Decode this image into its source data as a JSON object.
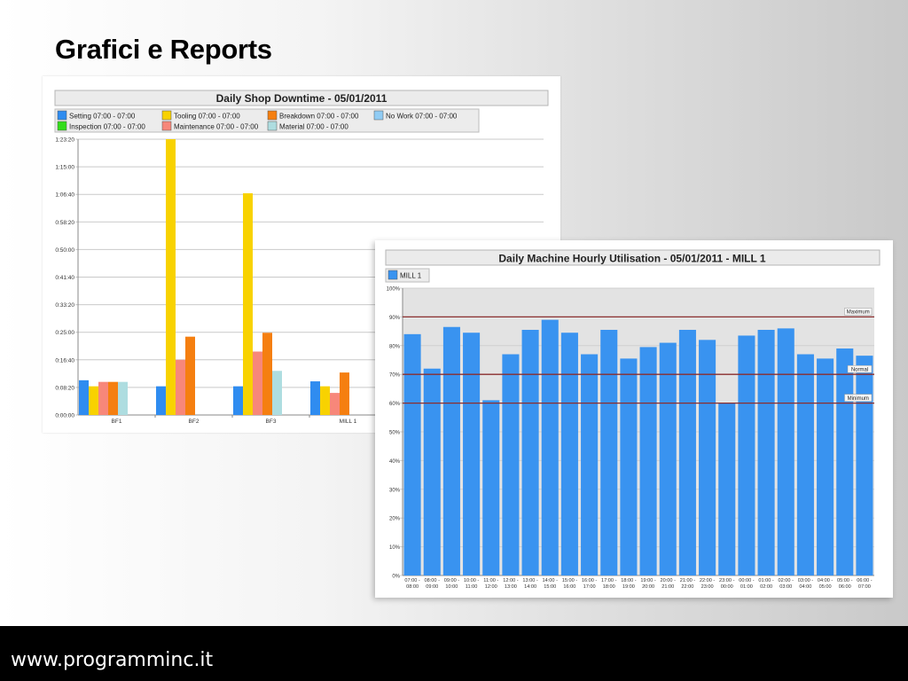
{
  "slide": {
    "title": "Grafici e Reports",
    "footer": "www.programminc.it"
  },
  "colors": {
    "setting": "#2f8cf0",
    "tooling": "#f8d200",
    "breakdown": "#f57f10",
    "nowork": "#90ccf4",
    "inspection": "#33dd1a",
    "maintenance": "#f7877a",
    "material": "#aedde0",
    "mill": "#3993f0",
    "refline": "#8b2e2e"
  },
  "chart_data": [
    {
      "type": "bar",
      "title": "Daily Shop Downtime - 05/01/2011",
      "categories": [
        "BF1",
        "BF2",
        "BF3",
        "MILL 1"
      ],
      "y_unit": "seconds",
      "ylim": [
        0,
        5000
      ],
      "y_ticks": [
        "0:00:00",
        "0:08:20",
        "0:16:40",
        "0:25:00",
        "0:33:20",
        "0:41:40",
        "0:50:00",
        "0:58:20",
        "1:06:40",
        "1:15:00",
        "1:23:20"
      ],
      "grid": true,
      "legend_position": "top",
      "series": [
        {
          "name": "Setting 07:00 - 07:00",
          "color_key": "setting",
          "values": [
            630,
            520,
            520,
            610
          ]
        },
        {
          "name": "Tooling 07:00 - 07:00",
          "color_key": "tooling",
          "values": [
            520,
            5000,
            4020,
            520
          ]
        },
        {
          "name": "Maintenance 07:00 - 07:00",
          "color_key": "maintenance",
          "values": [
            600,
            1000,
            1150,
            400
          ]
        },
        {
          "name": "Breakdown 07:00 - 07:00",
          "color_key": "breakdown",
          "values": [
            600,
            1420,
            1490,
            770
          ]
        },
        {
          "name": "Material 07:00 - 07:00",
          "color_key": "material",
          "values": [
            600,
            0,
            800,
            0
          ]
        },
        {
          "name": "No Work 07:00 - 07:00",
          "color_key": "nowork",
          "values": [
            0,
            0,
            0,
            0
          ]
        },
        {
          "name": "Inspection 07:00 - 07:00",
          "color_key": "inspection",
          "values": [
            0,
            0,
            0,
            0
          ]
        }
      ],
      "legend_order": [
        [
          "Setting 07:00 - 07:00",
          "Tooling 07:00 - 07:00",
          "Breakdown 07:00 - 07:00",
          "No Work 07:00 - 07:00"
        ],
        [
          "Inspection 07:00 - 07:00",
          "Maintenance 07:00 - 07:00",
          "Material 07:00 - 07:00"
        ]
      ]
    },
    {
      "type": "bar",
      "title": "Daily Machine Hourly Utilisation - 05/01/2011 - MILL 1",
      "legend": [
        "MILL 1"
      ],
      "y_unit": "percent",
      "ylim": [
        0,
        100
      ],
      "y_ticks": [
        "0%",
        "10%",
        "20%",
        "30%",
        "40%",
        "50%",
        "60%",
        "70%",
        "80%",
        "90%",
        "100%"
      ],
      "grid": true,
      "legend_position": "top-left",
      "categories": [
        [
          "07:00 -",
          "08:00"
        ],
        [
          "08:00 -",
          "09:00"
        ],
        [
          "09:00 -",
          "10:00"
        ],
        [
          "10:00 -",
          "11:00"
        ],
        [
          "11:00 -",
          "12:00"
        ],
        [
          "12:00 -",
          "13:00"
        ],
        [
          "13:00 -",
          "14:00"
        ],
        [
          "14:00 -",
          "15:00"
        ],
        [
          "15:00 -",
          "16:00"
        ],
        [
          "16:00 -",
          "17:00"
        ],
        [
          "17:00 -",
          "18:00"
        ],
        [
          "18:00 -",
          "19:00"
        ],
        [
          "19:00 -",
          "20:00"
        ],
        [
          "20:00 -",
          "21:00"
        ],
        [
          "21:00 -",
          "22:00"
        ],
        [
          "22:00 -",
          "23:00"
        ],
        [
          "23:00 -",
          "00:00"
        ],
        [
          "00:00 -",
          "01:00"
        ],
        [
          "01:00 -",
          "02:00"
        ],
        [
          "02:00 -",
          "03:00"
        ],
        [
          "03:00 -",
          "04:00"
        ],
        [
          "04:00 -",
          "05:00"
        ],
        [
          "05:00 -",
          "06:00"
        ],
        [
          "06:00 -",
          "07:00"
        ]
      ],
      "series": [
        {
          "name": "MILL 1",
          "color_key": "mill",
          "values": [
            84,
            72,
            86.5,
            84.5,
            61,
            77,
            85.5,
            89,
            84.5,
            77,
            85.5,
            75.5,
            79.5,
            81,
            85.5,
            82,
            60,
            83.5,
            85.5,
            86,
            77,
            75.5,
            79,
            76.5
          ]
        }
      ],
      "reference_lines": [
        {
          "label": "Maximum",
          "value": 90
        },
        {
          "label": "Normal",
          "value": 70
        },
        {
          "label": "Minimum",
          "value": 60
        }
      ]
    }
  ]
}
